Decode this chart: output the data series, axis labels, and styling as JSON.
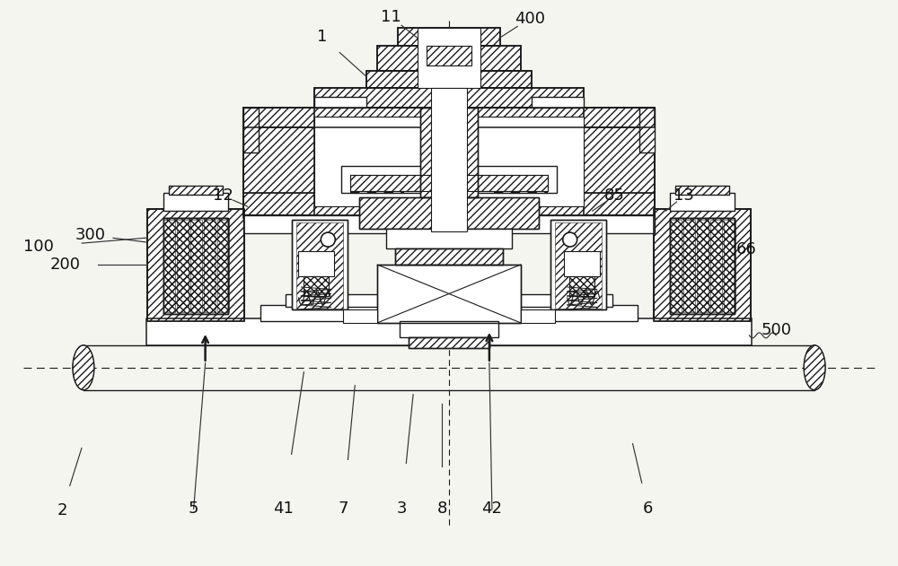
{
  "bg_color": "#f5f5f0",
  "line_color": "#1a1a1a",
  "figsize": [
    10.0,
    6.31
  ],
  "dpi": 100,
  "lw_main": 1.2,
  "lw_thin": 0.6,
  "label_fs": 13
}
